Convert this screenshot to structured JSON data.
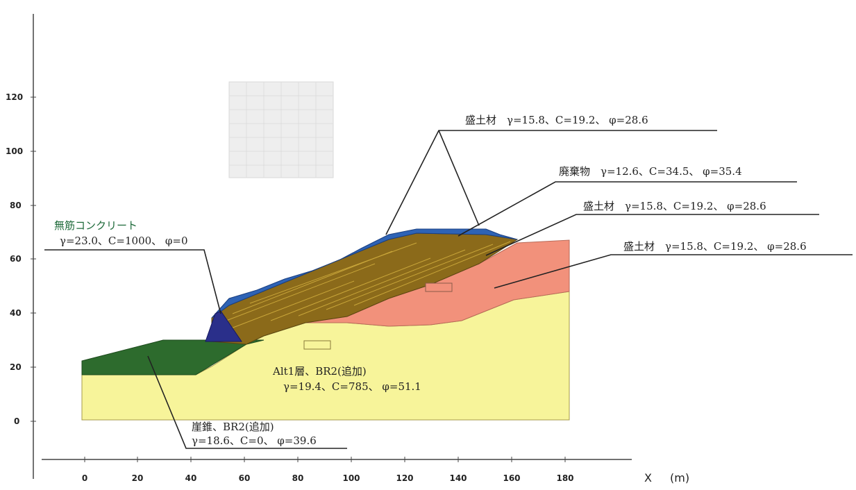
{
  "axes": {
    "x_ticks": [
      "0",
      "20",
      "40",
      "60",
      "80",
      "100",
      "120",
      "140",
      "160",
      "180"
    ],
    "y_ticks": [
      "120",
      "100",
      "80",
      "60",
      "40",
      "20",
      "0"
    ],
    "x_unit_letter": "X",
    "x_unit": "(m)"
  },
  "labels": {
    "fill_top": "盛土材　γ=15.8、C=19.2、 φ=28.6",
    "waste": "廃棄物　γ=12.6、C=34.5、 φ=35.4",
    "fill_mid": "盛土材　γ=15.8、C=19.2、 φ=28.6",
    "fill_right": "盛土材　γ=15.8、C=19.2、 φ=28.6",
    "concrete_title": "無筋コンクリート",
    "concrete_params": "γ=23.0、C=1000、 φ=0",
    "bedrock_title": "Alt1層、BR2(追加)",
    "bedrock_params": "γ=19.4、C=785、 φ=51.1",
    "talus_title": "崖錐、BR2(追加)",
    "talus_params": "γ=18.6、C=0、 φ=39.6"
  },
  "colors": {
    "bedrock": "#f7f49a",
    "fill_pink": "#f2917b",
    "waste": "#8b6a1a",
    "fill_blue": "#2e63b5",
    "concrete": "#2a2f8a",
    "talus": "#2d6b2d"
  }
}
